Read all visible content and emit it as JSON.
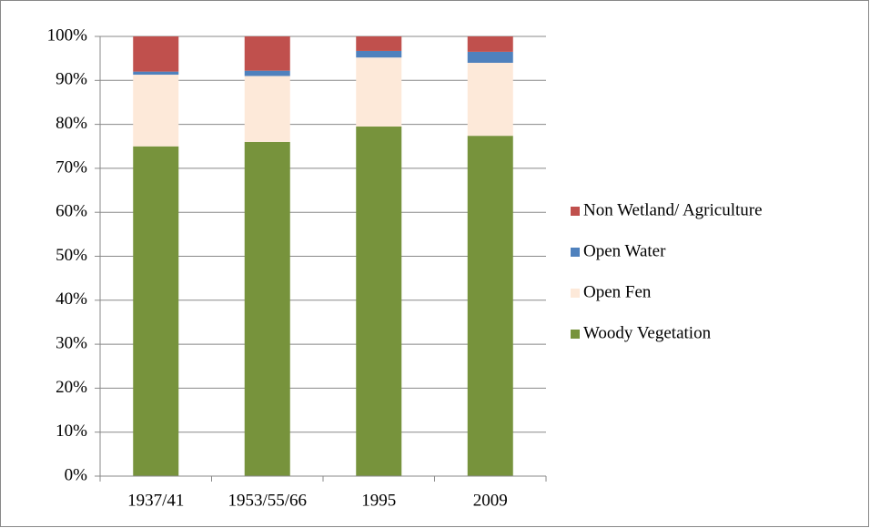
{
  "chart_data": {
    "type": "stacked-bar",
    "categories": [
      "1937/41",
      "1953/55/66",
      "1995",
      "2009"
    ],
    "series": [
      {
        "name": "Woody Vegetation",
        "color": "#77933c",
        "values": [
          75,
          76,
          79.5,
          77.4
        ]
      },
      {
        "name": "Open Fen",
        "color": "#fde9d9",
        "values": [
          16.3,
          15,
          15.7,
          16.6
        ]
      },
      {
        "name": "Open Water",
        "color": "#4f81bd",
        "values": [
          0.7,
          1.2,
          1.5,
          2.5
        ]
      },
      {
        "name": "Non Wetland/ Agriculture",
        "color": "#c0504d",
        "values": [
          8,
          7.8,
          3.3,
          3.5
        ]
      }
    ],
    "ylim": [
      0,
      100
    ],
    "yticks": [
      {
        "value": 0,
        "label": "0%"
      },
      {
        "value": 10,
        "label": "10%"
      },
      {
        "value": 20,
        "label": "20%"
      },
      {
        "value": 30,
        "label": "30%"
      },
      {
        "value": 40,
        "label": "40%"
      },
      {
        "value": 50,
        "label": "50%"
      },
      {
        "value": 60,
        "label": "60%"
      },
      {
        "value": 70,
        "label": "70%"
      },
      {
        "value": 80,
        "label": "80%"
      },
      {
        "value": 90,
        "label": "90%"
      },
      {
        "value": 100,
        "label": "100%"
      }
    ],
    "grid": true,
    "legend": "right"
  }
}
